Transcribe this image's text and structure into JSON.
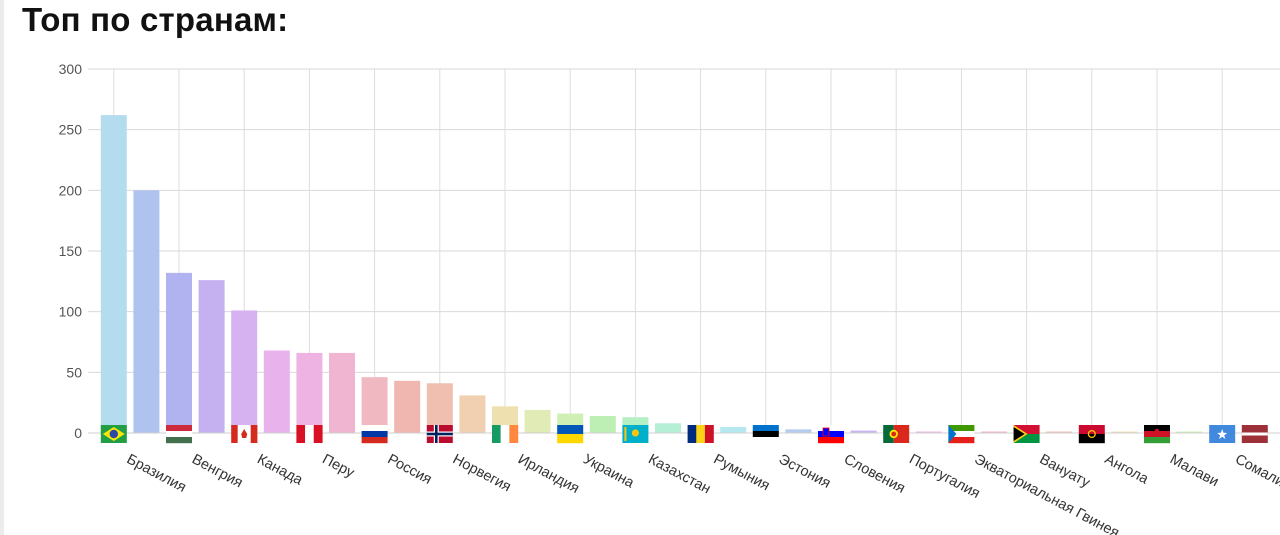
{
  "header": {
    "title": "Топ по странам:"
  },
  "chart_data": {
    "type": "bar",
    "title": "",
    "xlabel": "",
    "ylabel": "",
    "ylim": [
      0,
      300
    ],
    "yticks": [
      0,
      50,
      100,
      150,
      200,
      250,
      300
    ],
    "grid": true,
    "categories": [
      "Бразилия",
      "",
      "Венгрия",
      "",
      "Канада",
      "",
      "Перу",
      "",
      "Россия",
      "",
      "Норвегия",
      "",
      "Ирландия",
      "",
      "Украина",
      "",
      "Казахстан",
      "",
      "Румыния",
      "",
      "Эстония",
      "",
      "Словения",
      "",
      "Португалия",
      "",
      "Экваториальная Гвинея",
      "",
      "Вануату",
      "",
      "Ангола",
      "",
      "Малави",
      "",
      "Сомали",
      ""
    ],
    "values": [
      262,
      200,
      132,
      126,
      101,
      68,
      66,
      66,
      46,
      43,
      41,
      31,
      22,
      19,
      16,
      14,
      13,
      8,
      6,
      5,
      4,
      3,
      2,
      2,
      1,
      1,
      1,
      1,
      1,
      1,
      1,
      1,
      1,
      1,
      1,
      1
    ],
    "colors": [
      "#b3dcef",
      "#b0c3ef",
      "#b1b3f0",
      "#c5b1f0",
      "#d6b2f0",
      "#e8b3ed",
      "#efb3e3",
      "#efb5d1",
      "#f0b8c0",
      "#f0b6b0",
      "#f0bfb0",
      "#f0d0b0",
      "#efe0b0",
      "#e0ebb5",
      "#cfefb5",
      "#bdefb5",
      "#b5efc4",
      "#b5efd6",
      "#b5efe6",
      "#b5e8ef",
      "#b5dcef",
      "#b5ccef",
      "#bdbdef",
      "#cbb5ef",
      "#ddb5ef",
      "#edb5ed",
      "#efb5dc",
      "#efb5cc",
      "#efb5bd",
      "#efc1b5",
      "#efd2b5",
      "#efe2b5",
      "#e6efb5",
      "#d2efb5",
      "#c0efb5",
      "#b5efc4"
    ],
    "flags": [
      "brazil-flag-icon",
      "",
      "hungary-flag-icon",
      "",
      "canada-flag-icon",
      "",
      "peru-flag-icon",
      "",
      "russia-flag-icon",
      "",
      "norway-flag-icon",
      "",
      "ireland-flag-icon",
      "",
      "ukraine-flag-icon",
      "",
      "kazakhstan-flag-icon",
      "",
      "romania-flag-icon",
      "",
      "estonia-flag-icon",
      "",
      "slovenia-flag-icon",
      "",
      "portugal-flag-icon",
      "",
      "equatorial-guinea-flag-icon",
      "",
      "vanuatu-flag-icon",
      "",
      "angola-flag-icon",
      "",
      "malawi-flag-icon",
      "",
      "somalia-flag-icon",
      "latvia-flag-icon"
    ]
  }
}
